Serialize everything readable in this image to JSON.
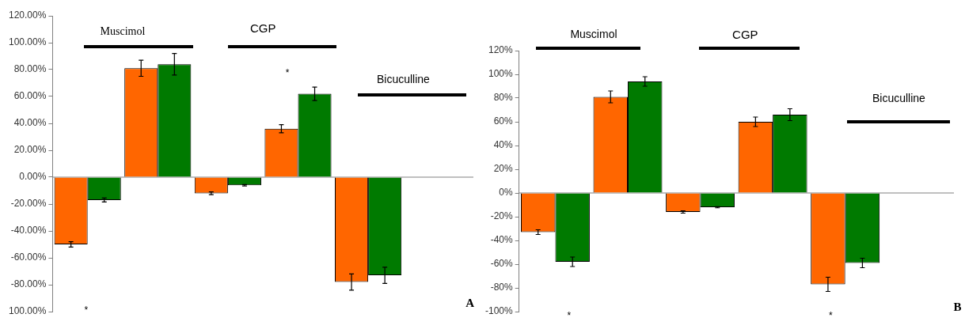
{
  "chart_data": [
    {
      "type": "bar",
      "categories": [
        null,
        null,
        null,
        null,
        null,
        null
      ],
      "series": [
        {
          "color": "#ff6600",
          "values": [
            -50,
            81,
            -12,
            36,
            -78,
            null
          ],
          "errors": [
            2,
            6,
            1,
            3,
            6,
            null
          ]
        },
        {
          "color": "#007a00",
          "values": [
            -17,
            84,
            -6,
            62,
            -73,
            null
          ],
          "errors": [
            1.5,
            8,
            0.5,
            5,
            6,
            null
          ]
        }
      ],
      "ylim": [
        -100,
        120
      ],
      "yticks": [
        {
          "value": -100,
          "label": "100.00%"
        },
        {
          "value": -80,
          "label": "-80.00%"
        },
        {
          "value": -60,
          "label": "-60.00%"
        },
        {
          "value": -40,
          "label": "-40.00%"
        },
        {
          "value": -20,
          "label": "-20.00%"
        },
        {
          "value": 0,
          "label": "0.00%"
        },
        {
          "value": 20,
          "label": "20.00%"
        },
        {
          "value": 40,
          "label": "40.00%"
        },
        {
          "value": 60,
          "label": "60.00%"
        },
        {
          "value": 80,
          "label": "80.00%"
        },
        {
          "value": 100,
          "label": "100.00%"
        },
        {
          "value": 120,
          "label": "120.00%"
        }
      ],
      "tick_labels": "y",
      "grid": false,
      "legend": false,
      "ref_lines": [
        {
          "axis": "y",
          "value": 0,
          "color": "#808080"
        }
      ],
      "annotations": [
        "Muscimol",
        "CGP",
        "Bicuculline",
        "*",
        "*",
        "A"
      ]
    },
    {
      "type": "bar",
      "categories": [
        null,
        null,
        null,
        null,
        null,
        null
      ],
      "series": [
        {
          "color": "#ff6600",
          "values": [
            -33,
            81,
            -16,
            60,
            -77,
            null
          ],
          "errors": [
            2,
            5,
            1,
            4,
            6,
            null
          ]
        },
        {
          "color": "#007a00",
          "values": [
            -58,
            94,
            -12,
            66,
            -59,
            null
          ],
          "errors": [
            4,
            4,
            0.5,
            5,
            4,
            null
          ]
        }
      ],
      "ylim": [
        -100,
        120
      ],
      "yticks": [
        {
          "value": -100,
          "label": "-100%"
        },
        {
          "value": -80,
          "label": "-80%"
        },
        {
          "value": -60,
          "label": "-60%"
        },
        {
          "value": -40,
          "label": "-40%"
        },
        {
          "value": -20,
          "label": "-20%"
        },
        {
          "value": 0,
          "label": "0%"
        },
        {
          "value": 20,
          "label": "20%"
        },
        {
          "value": 40,
          "label": "40%"
        },
        {
          "value": 60,
          "label": "60%"
        },
        {
          "value": 80,
          "label": "80%"
        },
        {
          "value": 100,
          "label": "100%"
        },
        {
          "value": 120,
          "label": "120%"
        }
      ],
      "tick_labels": "y",
      "grid": false,
      "legend": false,
      "ref_lines": [
        {
          "axis": "y",
          "value": 0,
          "color": "#808080"
        }
      ],
      "annotations": [
        "Muscimol",
        "CGP",
        "Bicuculline",
        "*",
        "*",
        "B"
      ]
    }
  ]
}
